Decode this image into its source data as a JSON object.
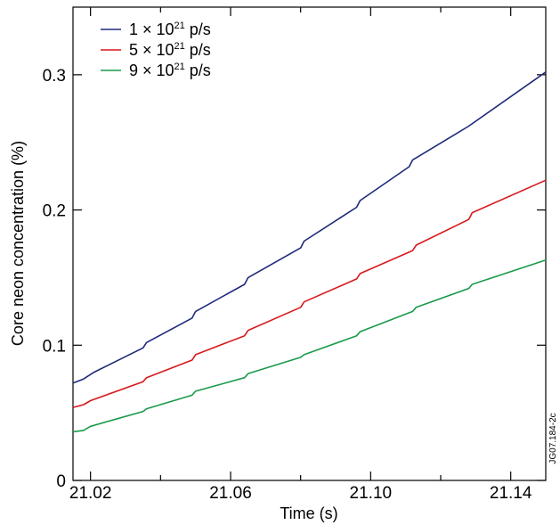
{
  "chart_data": {
    "type": "line",
    "xlabel": "Time (s)",
    "ylabel": "Core neon concentration (%)",
    "xlim": [
      21.015,
      21.15
    ],
    "ylim": [
      0,
      0.35
    ],
    "x_ticks": [
      21.02,
      21.06,
      21.1,
      21.14
    ],
    "x_tick_labels": [
      "21.02",
      "21.06",
      "21.10",
      "21.14"
    ],
    "y_ticks": [
      0,
      0.1,
      0.2,
      0.3
    ],
    "y_tick_labels": [
      "0",
      "0.1",
      "0.2",
      "0.3"
    ],
    "grid": false,
    "legend_position": "top-left",
    "watermark": "JG07.184-2c",
    "series": [
      {
        "name": "1 × 10²¹ p/s",
        "legend_base": "1 × 10",
        "legend_exp": "21",
        "legend_unit": " p/s",
        "color": "#1f2a7a",
        "x": [
          21.015,
          21.018,
          21.021,
          21.035,
          21.036,
          21.049,
          21.05,
          21.064,
          21.065,
          21.08,
          21.081,
          21.096,
          21.097,
          21.111,
          21.112,
          21.128,
          21.15
        ],
        "y": [
          0.072,
          0.075,
          0.08,
          0.098,
          0.102,
          0.12,
          0.125,
          0.145,
          0.15,
          0.172,
          0.177,
          0.202,
          0.207,
          0.232,
          0.237,
          0.262,
          0.302
        ]
      },
      {
        "name": "5 × 10²¹ p/s",
        "legend_base": "5 × 10",
        "legend_exp": "21",
        "legend_unit": " p/s",
        "color": "#d7191c",
        "x": [
          21.015,
          21.018,
          21.02,
          21.035,
          21.036,
          21.049,
          21.05,
          21.064,
          21.065,
          21.08,
          21.081,
          21.096,
          21.097,
          21.112,
          21.113,
          21.128,
          21.129,
          21.15
        ],
        "y": [
          0.054,
          0.056,
          0.059,
          0.073,
          0.076,
          0.089,
          0.093,
          0.107,
          0.111,
          0.128,
          0.132,
          0.149,
          0.153,
          0.17,
          0.174,
          0.193,
          0.198,
          0.222
        ]
      },
      {
        "name": "9 × 10²¹ p/s",
        "legend_base": "9 × 10",
        "legend_exp": "21",
        "legend_unit": " p/s",
        "color": "#1a9a4a",
        "x": [
          21.015,
          21.018,
          21.02,
          21.035,
          21.036,
          21.049,
          21.05,
          21.064,
          21.065,
          21.08,
          21.081,
          21.096,
          21.097,
          21.112,
          21.113,
          21.128,
          21.129,
          21.15
        ],
        "y": [
          0.036,
          0.037,
          0.04,
          0.051,
          0.053,
          0.063,
          0.066,
          0.076,
          0.079,
          0.091,
          0.093,
          0.107,
          0.11,
          0.125,
          0.128,
          0.142,
          0.145,
          0.163
        ]
      }
    ]
  }
}
